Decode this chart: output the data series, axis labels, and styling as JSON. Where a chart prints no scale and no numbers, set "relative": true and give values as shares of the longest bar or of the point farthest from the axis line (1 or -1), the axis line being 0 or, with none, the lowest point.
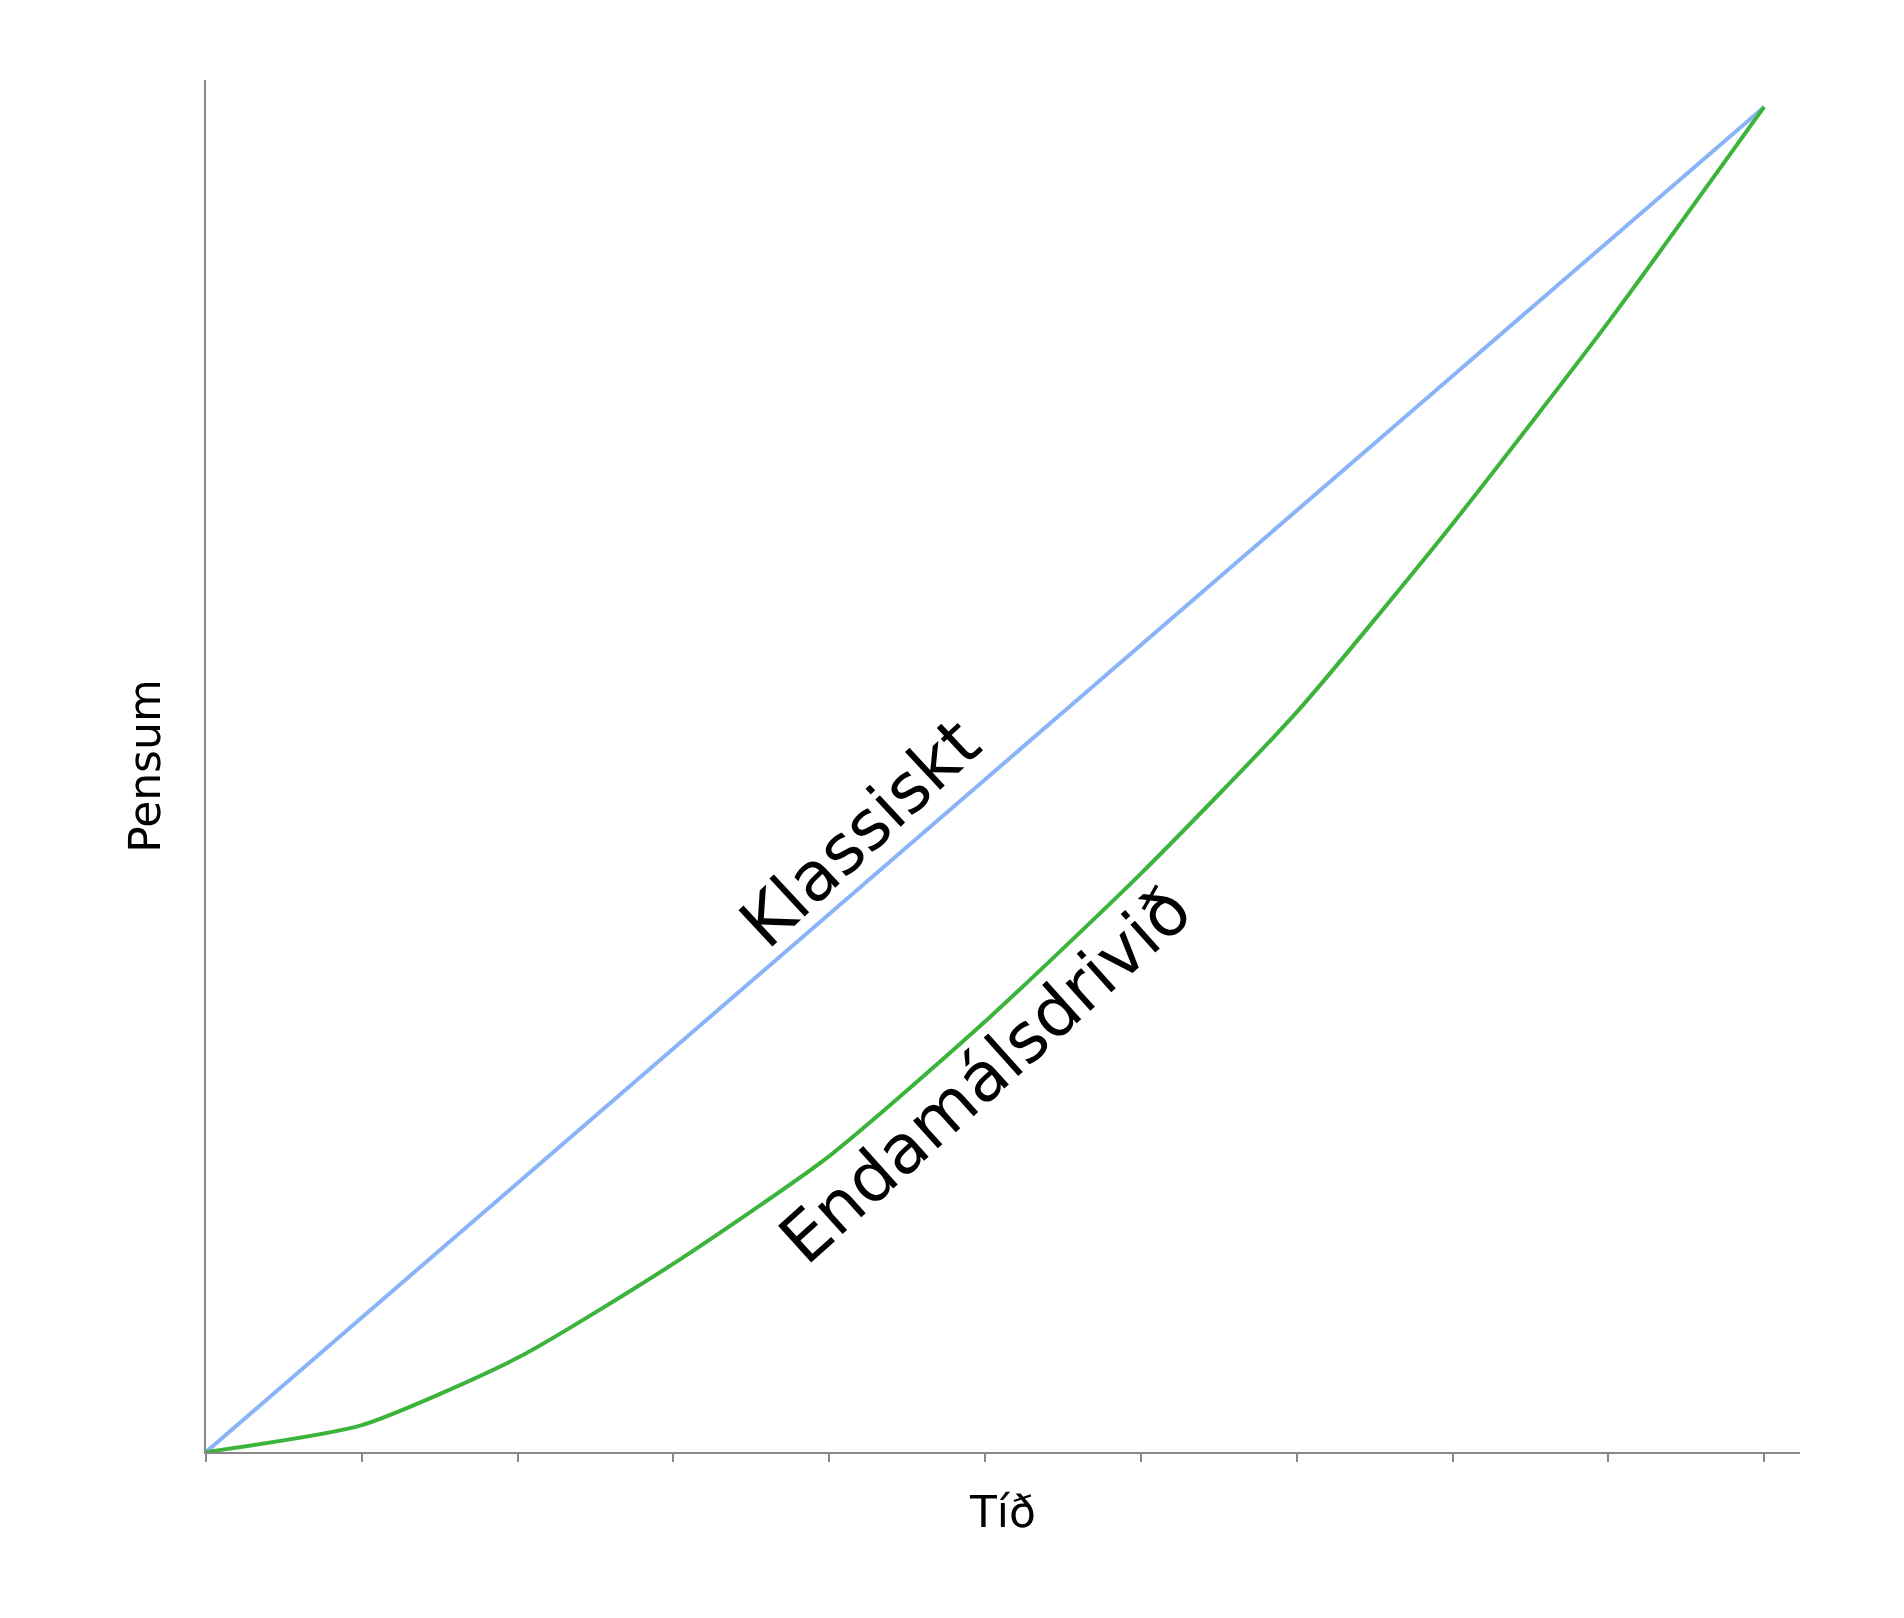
{
  "chart_data": {
    "type": "line",
    "xlabel": "Tíð",
    "ylabel": "Pensum",
    "relative": true,
    "categories": [
      null,
      null,
      null,
      null,
      null,
      null,
      null,
      null,
      null,
      null,
      null
    ],
    "series": [
      {
        "name": "Klassiskt",
        "color": "#8ab4f8",
        "values": [
          0,
          0.1,
          0.2,
          0.3,
          0.4,
          0.5,
          0.6,
          0.7,
          0.8,
          0.9,
          1
        ]
      },
      {
        "name": "Endamálsdrivið",
        "color": "#3cb43c",
        "values": [
          0,
          0.02,
          0.07,
          0.14,
          0.22,
          0.32,
          0.43,
          0.55,
          0.69,
          0.84,
          1
        ]
      }
    ],
    "legend": false,
    "marker": "none",
    "line_style": "solid"
  }
}
